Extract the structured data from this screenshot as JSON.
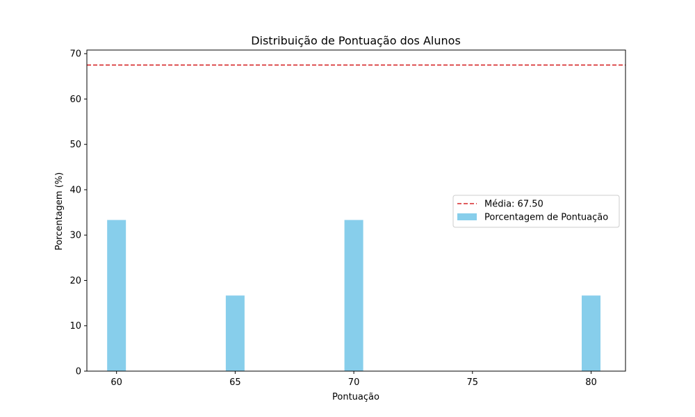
{
  "chart_data": {
    "type": "bar",
    "title": "Distribuição de Pontuação dos Alunos",
    "xlabel": "Pontuação",
    "ylabel": "Porcentagem (%)",
    "x": [
      60,
      65,
      70,
      75,
      80
    ],
    "values": [
      33.33,
      16.67,
      33.33,
      0,
      16.67
    ],
    "xticks": [
      60,
      65,
      70,
      75,
      80
    ],
    "yticks": [
      0,
      10,
      20,
      30,
      40,
      50,
      60,
      70
    ],
    "xlim": [
      58.75,
      81.45
    ],
    "ylim": [
      0,
      70.8
    ],
    "bar_color": "#87ceeb",
    "mean": {
      "value": 67.5,
      "label": "Média: 67.50",
      "color": "#d62728",
      "style": "dashed"
    },
    "legend": {
      "placement": "center-right",
      "entries": [
        "Média: 67.50",
        "Porcentagem de Pontuação"
      ]
    },
    "grid": false
  }
}
